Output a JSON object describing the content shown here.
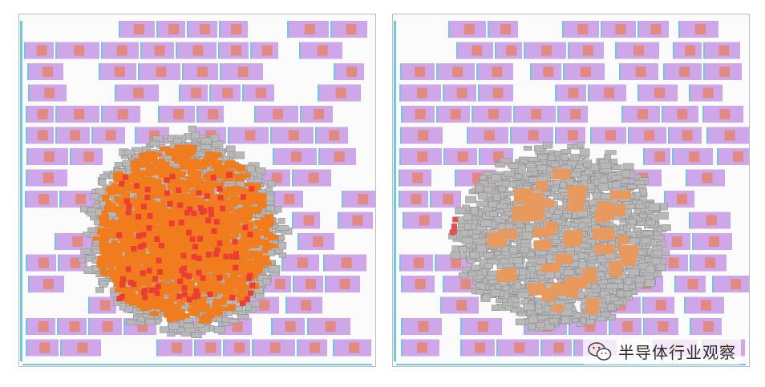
{
  "figure": {
    "left_panel": {
      "hotspot_colors": [
        "#f07c1e",
        "#ec3c34"
      ]
    },
    "right_panel": {
      "hotspot_colors": [
        "#e8995e",
        "#e05050"
      ]
    }
  },
  "colors": {
    "macro_fill": "#cda7ea",
    "macro_core": "#e28a7f",
    "macro_edge": "#6cc7e0",
    "std_cell": "#b8b8b8",
    "background": "#fbfbfb"
  },
  "watermark": {
    "icon": "wechat-icon",
    "text": "半导体行业观察"
  }
}
